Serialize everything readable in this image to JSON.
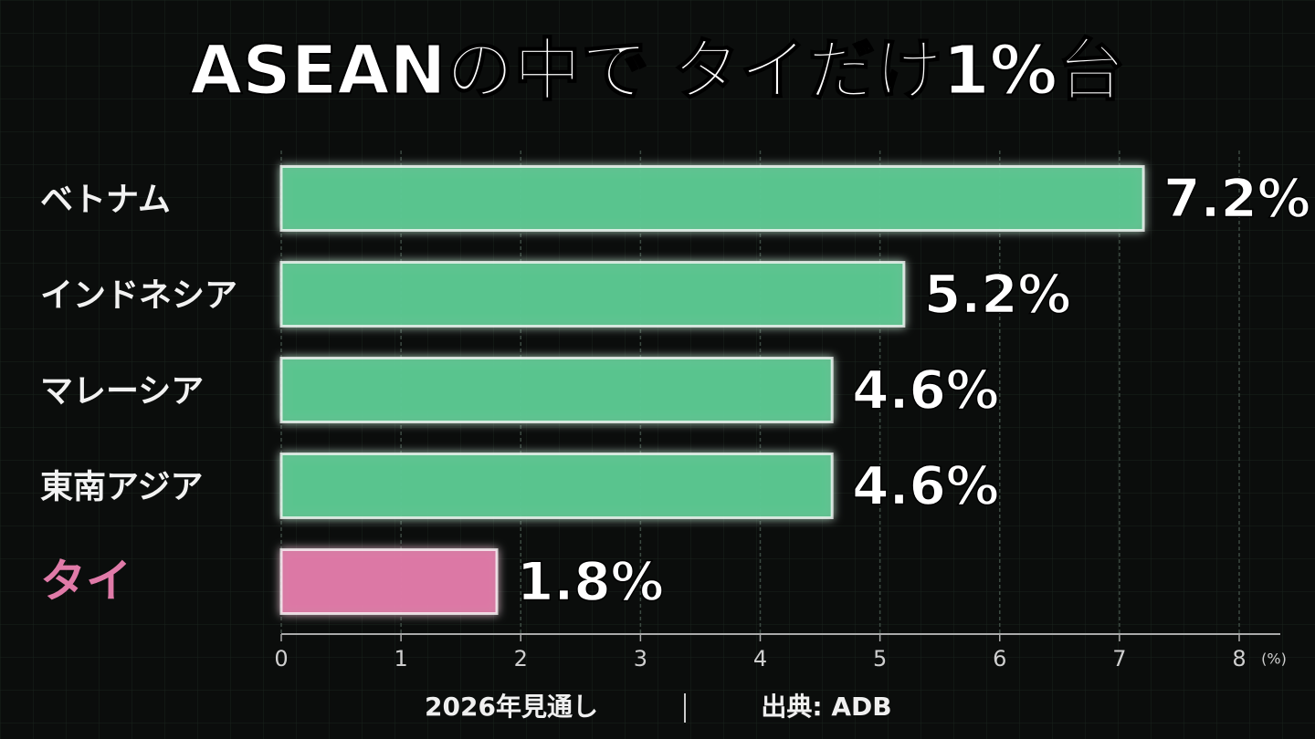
{
  "chart_data": {
    "type": "bar",
    "orientation": "horizontal",
    "title": "ASEANの中で タイだけ1%台",
    "categories": [
      "ベトナム",
      "インドネシア",
      "マレーシア",
      "東南アジア",
      "タイ"
    ],
    "values": [
      7.2,
      5.2,
      4.6,
      4.6,
      1.8
    ],
    "value_labels": [
      "7.2%",
      "5.2%",
      "4.6%",
      "4.6%",
      "1.8%"
    ],
    "colors": [
      "#5cc892",
      "#5cc892",
      "#5cc892",
      "#5cc892",
      "#e07aa8"
    ],
    "label_colors": [
      "#f2f2f2",
      "#f2f2f2",
      "#f2f2f2",
      "#f2f2f2",
      "#e07aa8"
    ],
    "xlim": [
      0,
      8
    ],
    "xticks": [
      0,
      1,
      2,
      3,
      4,
      5,
      6,
      7,
      8
    ],
    "x_unit": "(%)",
    "grid": true,
    "footnote": "2026年見通し",
    "source": "出典: ADB"
  }
}
